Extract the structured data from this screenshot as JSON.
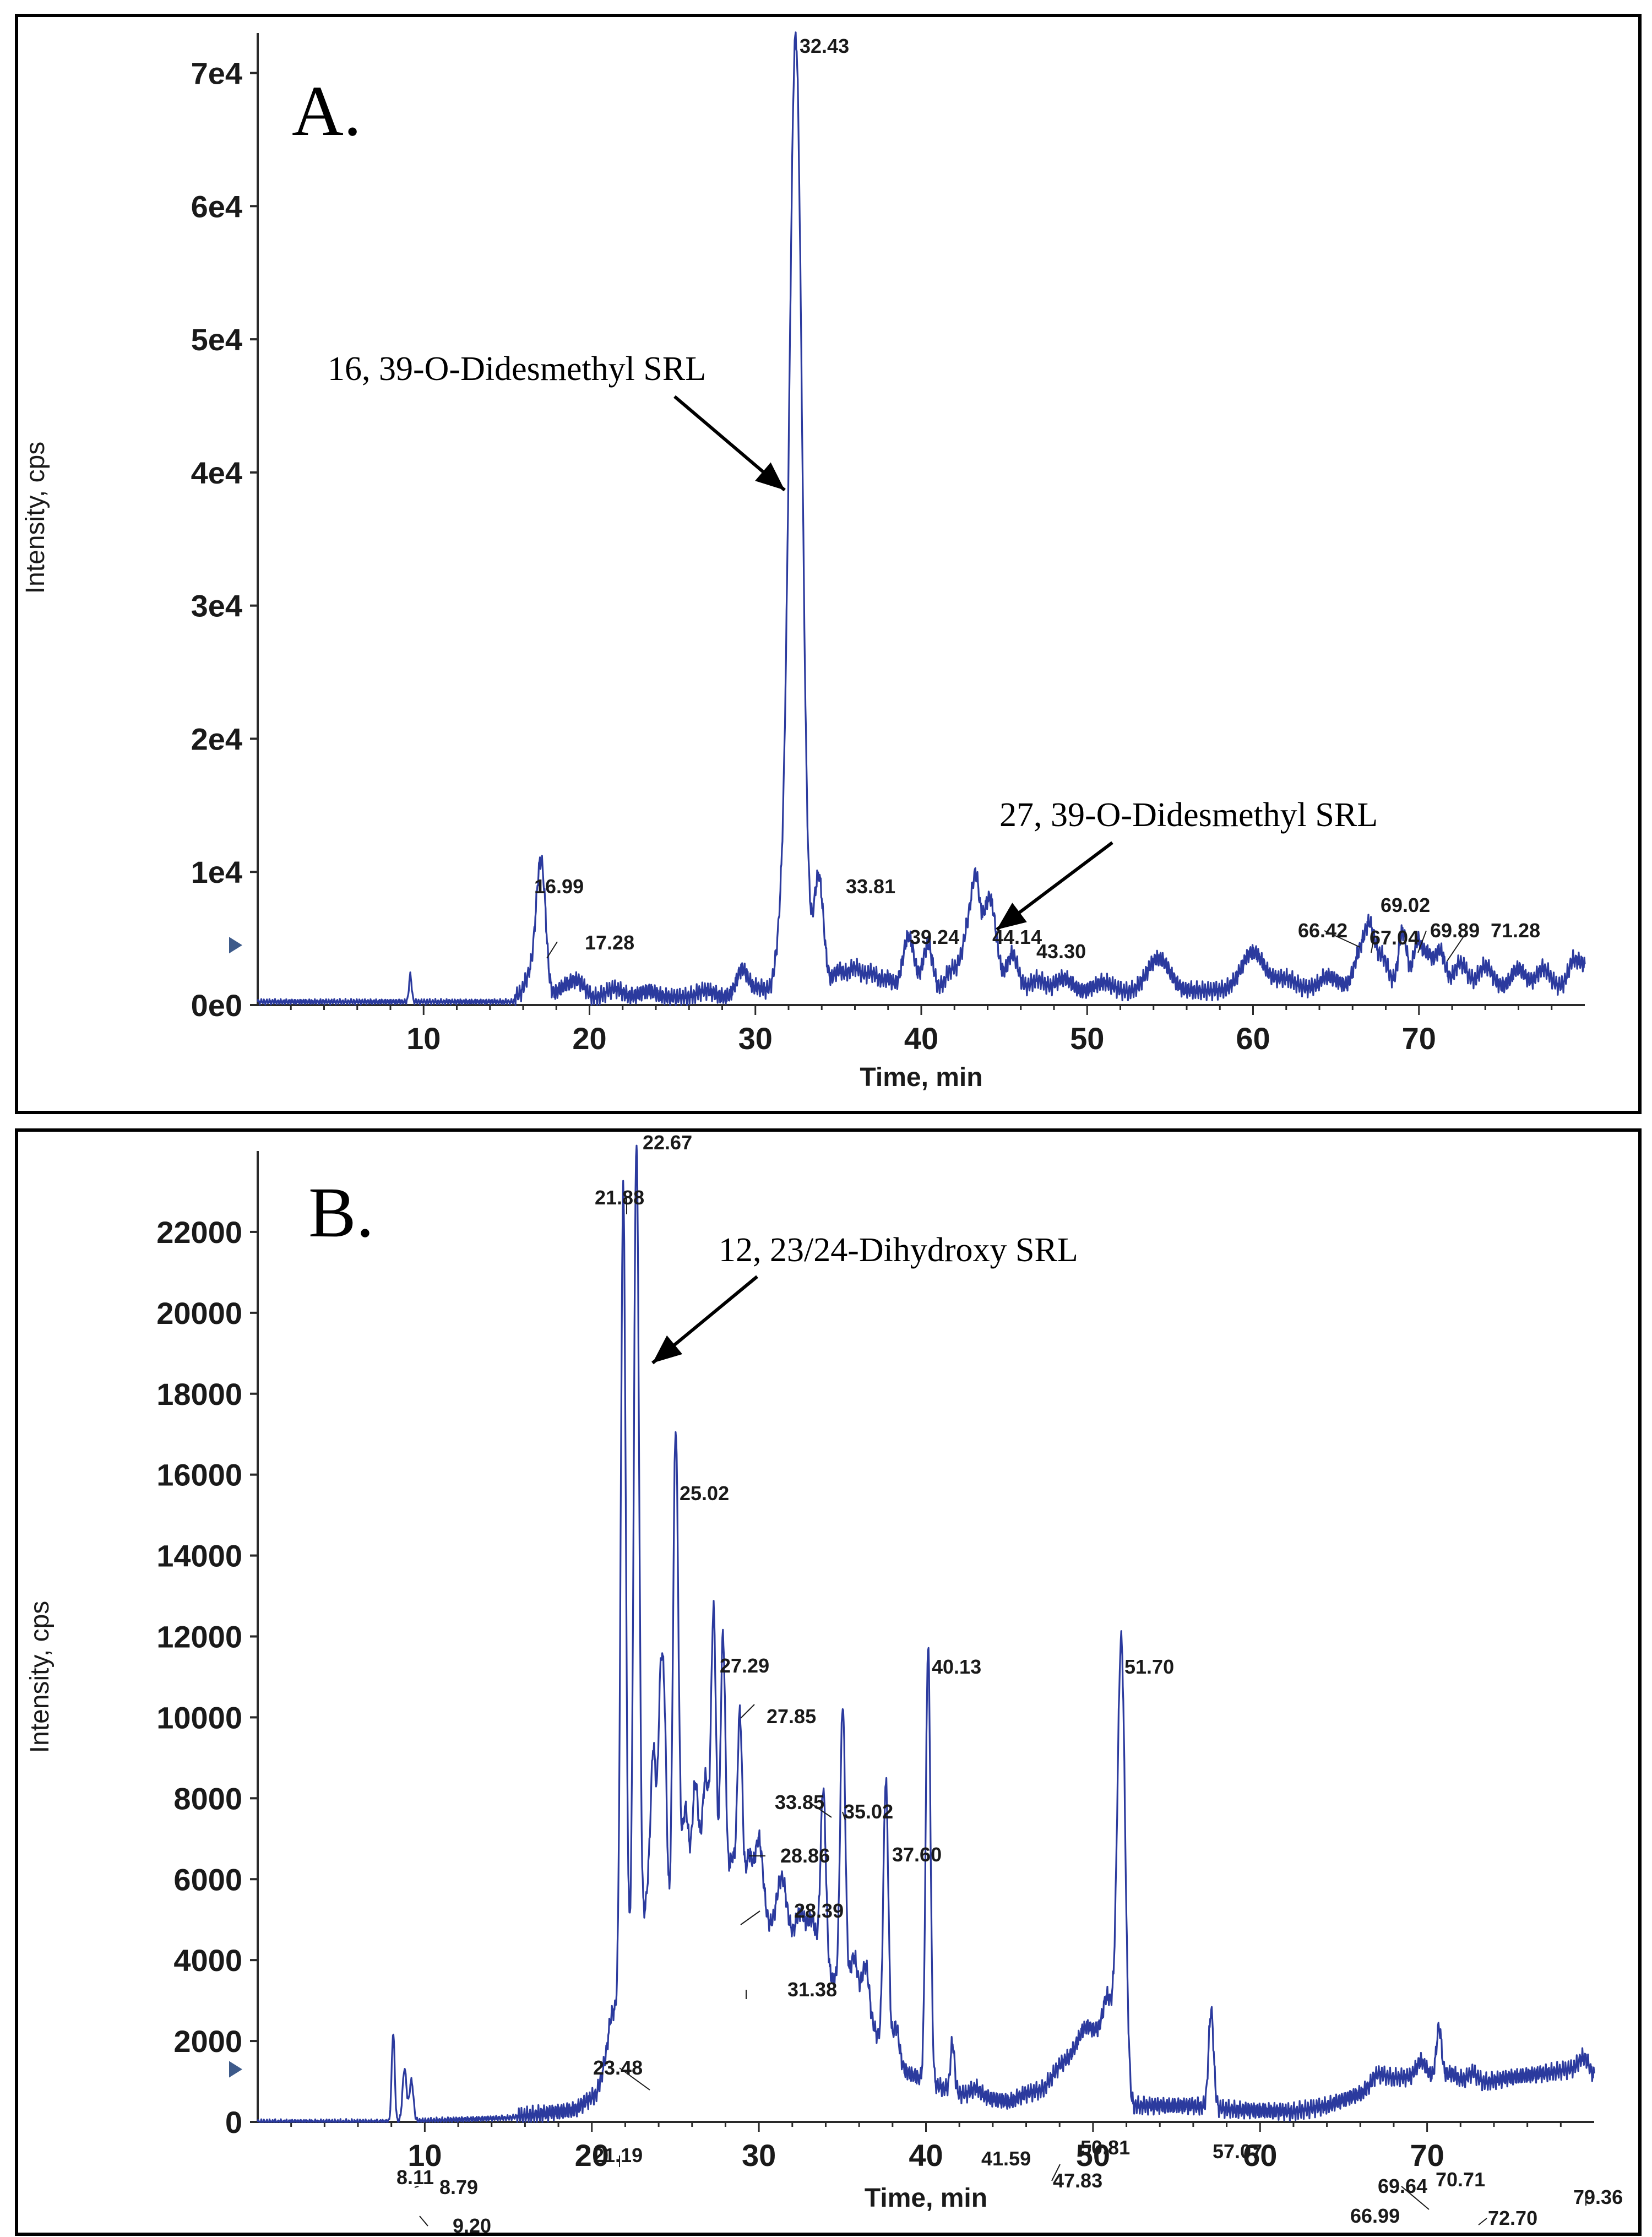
{
  "chart_data": [
    {
      "panel_label": "A.",
      "type": "line",
      "xlabel": "Time, min",
      "ylabel": "Intensity, cps",
      "xlim": [
        0,
        80
      ],
      "ylim": [
        0,
        73000
      ],
      "x_ticks": [
        10,
        20,
        30,
        40,
        50,
        60,
        70
      ],
      "y_ticks": [
        {
          "value": 0,
          "label": "0e0"
        },
        {
          "value": 10000,
          "label": "1e4"
        },
        {
          "value": 20000,
          "label": "2e4"
        },
        {
          "value": 30000,
          "label": "3e4"
        },
        {
          "value": 40000,
          "label": "4e4"
        },
        {
          "value": 50000,
          "label": "5e4"
        },
        {
          "value": 60000,
          "label": "6e4"
        },
        {
          "value": 70000,
          "label": "7e4"
        }
      ],
      "baseline": 250,
      "noise": [
        500,
        600,
        800,
        1000,
        1200,
        1500,
        1800,
        2000
      ],
      "peaks": [
        [
          9.2,
          2000,
          0.08
        ],
        [
          16.4,
          1600,
          0.3
        ],
        [
          16.99,
          8500,
          0.25
        ],
        [
          17.28,
          3500,
          0.2
        ],
        [
          18.5,
          700,
          0.4
        ],
        [
          19.3,
          1100,
          0.4
        ],
        [
          21.5,
          700,
          0.5
        ],
        [
          23.5,
          500,
          0.5
        ],
        [
          27,
          500,
          0.5
        ],
        [
          29.2,
          2000,
          0.35
        ],
        [
          30.2,
          700,
          0.5
        ],
        [
          31.6,
          4500,
          0.35
        ],
        [
          32.43,
          71800,
          0.38
        ],
        [
          33.81,
          9000,
          0.3
        ],
        [
          35.0,
          1800,
          0.4
        ],
        [
          36.0,
          2000,
          0.4
        ],
        [
          37.0,
          1600,
          0.4
        ],
        [
          38.0,
          1200,
          0.4
        ],
        [
          39.24,
          4500,
          0.35
        ],
        [
          40.4,
          3700,
          0.3
        ],
        [
          41.8,
          1700,
          0.4
        ],
        [
          43.0,
          6000,
          0.45
        ],
        [
          43.3,
          3500,
          0.2
        ],
        [
          44.14,
          7000,
          0.4
        ],
        [
          45.5,
          3000,
          0.35
        ],
        [
          47.0,
          1100,
          0.5
        ],
        [
          48.6,
          1100,
          0.5
        ],
        [
          51.0,
          800,
          0.6
        ],
        [
          54.3,
          2600,
          0.7
        ],
        [
          60.0,
          2900,
          0.7
        ],
        [
          62.0,
          900,
          0.6
        ],
        [
          64.5,
          900,
          0.6
        ],
        [
          66.42,
          2500,
          0.35
        ],
        [
          67.04,
          4200,
          0.3
        ],
        [
          67.8,
          2300,
          0.35
        ],
        [
          69.02,
          4300,
          0.25
        ],
        [
          69.89,
          3300,
          0.25
        ],
        [
          70.5,
          2500,
          0.3
        ],
        [
          71.28,
          2800,
          0.3
        ],
        [
          72.5,
          1800,
          0.4
        ],
        [
          74.0,
          1600,
          0.4
        ],
        [
          76.0,
          1400,
          0.4
        ],
        [
          77.5,
          1400,
          0.4
        ],
        [
          79.3,
          2000,
          0.3
        ],
        [
          79.9,
          1500,
          0.25
        ]
      ],
      "peak_labels": [
        {
          "text": "32.43",
          "x": 32.43,
          "y": 71800
        },
        {
          "text": "33.81",
          "x": 33.81,
          "y": 9000
        },
        {
          "text": "16.99",
          "x": 16.99,
          "y": 8500
        },
        {
          "text": "17.28",
          "x": 17.28,
          "y": 3500
        },
        {
          "text": "39.24",
          "x": 39.24,
          "y": 4500
        },
        {
          "text": "44.14",
          "x": 44.14,
          "y": 7000
        },
        {
          "text": "43.30",
          "x": 43.3,
          "y": 3500
        },
        {
          "text": "66.42",
          "x": 66.42,
          "y": 2500
        },
        {
          "text": "67.04",
          "x": 67.04,
          "y": 4200
        },
        {
          "text": "69.02",
          "x": 69.02,
          "y": 4300
        },
        {
          "text": "69.89",
          "x": 69.89,
          "y": 3300
        },
        {
          "text": "71.28",
          "x": 71.28,
          "y": 2800
        }
      ],
      "annotations": [
        {
          "text": "16, 39-O-Didesmethyl SRL",
          "points_to_x": 32.2,
          "points_to_y": 40000
        },
        {
          "text": "27, 39-O-Didesmethyl SRL",
          "points_to_x": 44.3,
          "points_to_y": 6000
        }
      ]
    },
    {
      "panel_label": "B.",
      "type": "line",
      "xlabel": "Time, min",
      "ylabel": "Intensity, cps",
      "xlim": [
        0,
        80
      ],
      "ylim": [
        0,
        24000
      ],
      "x_ticks": [
        10,
        20,
        30,
        40,
        50,
        60,
        70
      ],
      "y_ticks": [
        {
          "value": 0,
          "label": "0"
        },
        {
          "value": 2000,
          "label": "2000"
        },
        {
          "value": 4000,
          "label": "4000"
        },
        {
          "value": 6000,
          "label": "6000"
        },
        {
          "value": 8000,
          "label": "8000"
        },
        {
          "value": 10000,
          "label": "10000"
        },
        {
          "value": 12000,
          "label": "12000"
        },
        {
          "value": 14000,
          "label": "14000"
        },
        {
          "value": 16000,
          "label": "16000"
        },
        {
          "value": 18000,
          "label": "18000"
        },
        {
          "value": 20000,
          "label": "20000"
        },
        {
          "value": 22000,
          "label": "22000"
        }
      ],
      "baseline": 0,
      "noise": [
        100,
        100,
        300,
        600,
        700,
        700,
        650,
        600,
        500,
        400,
        300,
        300,
        300,
        300,
        350,
        400,
        450
      ],
      "segments": [
        [
          0,
          0
        ],
        [
          8.0,
          0
        ],
        [
          15.0,
          100
        ],
        [
          19.0,
          300
        ],
        [
          20.3,
          700
        ],
        [
          21.0,
          1800
        ],
        [
          22.2,
          3500
        ],
        [
          24.5,
          4500
        ],
        [
          27.0,
          5000
        ],
        [
          30.0,
          5000
        ],
        [
          33.0,
          4000
        ],
        [
          36.0,
          3000
        ],
        [
          38.0,
          1400
        ],
        [
          40.0,
          1000
        ],
        [
          42.0,
          700
        ],
        [
          45.0,
          500
        ],
        [
          46.0,
          700
        ],
        [
          47.0,
          800
        ],
        [
          48.0,
          1400
        ],
        [
          50.0,
          2100
        ],
        [
          51.0,
          2600
        ],
        [
          51.4,
          2700
        ],
        [
          52.3,
          400
        ],
        [
          56.0,
          400
        ],
        [
          58.5,
          300
        ],
        [
          62.0,
          250
        ],
        [
          64.0,
          400
        ],
        [
          66.0,
          700
        ],
        [
          67.5,
          1100
        ],
        [
          70.0,
          1100
        ],
        [
          71.5,
          1200
        ],
        [
          72.5,
          900
        ],
        [
          75.0,
          1100
        ],
        [
          77.0,
          1200
        ],
        [
          78.5,
          1300
        ],
        [
          79.5,
          1300
        ],
        [
          80.0,
          1100
        ]
      ],
      "peaks": [
        [
          8.11,
          2200,
          0.09
        ],
        [
          8.79,
          1300,
          0.12
        ],
        [
          9.2,
          1000,
          0.12
        ],
        [
          21.19,
          600,
          0.2
        ],
        [
          21.88,
          20000,
          0.15
        ],
        [
          22.67,
          20500,
          0.16
        ],
        [
          23.48,
          2000,
          0.3
        ],
        [
          23.7,
          3500,
          0.15
        ],
        [
          24.1,
          5500,
          0.14
        ],
        [
          24.35,
          5000,
          0.14
        ],
        [
          25.02,
          12500,
          0.16
        ],
        [
          25.6,
          3000,
          0.2
        ],
        [
          26.2,
          3500,
          0.2
        ],
        [
          26.8,
          3500,
          0.2
        ],
        [
          27.29,
          7500,
          0.15
        ],
        [
          27.85,
          7000,
          0.15
        ],
        [
          28.39,
          1500,
          0.2
        ],
        [
          28.86,
          5000,
          0.15
        ],
        [
          29.4,
          1500,
          0.2
        ],
        [
          30.0,
          2000,
          0.25
        ],
        [
          31.38,
          1500,
          0.3
        ],
        [
          32.5,
          1000,
          0.3
        ],
        [
          33.2,
          1000,
          0.25
        ],
        [
          33.85,
          4500,
          0.16
        ],
        [
          35.02,
          7000,
          0.15
        ],
        [
          35.7,
          1000,
          0.2
        ],
        [
          36.4,
          1200,
          0.2
        ],
        [
          37.6,
          6700,
          0.15
        ],
        [
          38.2,
          1000,
          0.2
        ],
        [
          40.13,
          10800,
          0.14
        ],
        [
          41.59,
          1200,
          0.12
        ],
        [
          43.0,
          200,
          0.3
        ],
        [
          49.5,
          400,
          0.4
        ],
        [
          50.81,
          600,
          0.2
        ],
        [
          51.7,
          10000,
          0.22
        ],
        [
          57.07,
          2400,
          0.15
        ],
        [
          66.99,
          200,
          0.3
        ],
        [
          69.64,
          400,
          0.3
        ],
        [
          70.71,
          1200,
          0.15
        ],
        [
          72.7,
          300,
          0.3
        ],
        [
          79.36,
          300,
          0.3
        ]
      ],
      "peak_labels": [
        {
          "text": "22.67",
          "x": 22.67,
          "y": 23800
        },
        {
          "text": "21.88",
          "x": 21.88,
          "y": 21800
        },
        {
          "text": "25.02",
          "x": 25.02,
          "y": 16800
        },
        {
          "text": "27.29",
          "x": 27.29,
          "y": 12600
        },
        {
          "text": "27.85",
          "x": 27.85,
          "y": 12100
        },
        {
          "text": "33.85",
          "x": 33.85,
          "y": 8500
        },
        {
          "text": "35.02",
          "x": 35.02,
          "y": 9800
        },
        {
          "text": "28.86",
          "x": 28.86,
          "y": 9800
        },
        {
          "text": "28.39",
          "x": 28.39,
          "y": 6900
        },
        {
          "text": "31.38",
          "x": 31.38,
          "y": 6200
        },
        {
          "text": "37.60",
          "x": 37.6,
          "y": 8400
        },
        {
          "text": "40.13",
          "x": 40.13,
          "y": 11800
        },
        {
          "text": "51.70",
          "x": 51.7,
          "y": 12600
        },
        {
          "text": "23.48",
          "x": 23.48,
          "y": 4200
        },
        {
          "text": "21.19",
          "x": 21.19,
          "y": 2400
        },
        {
          "text": "8.11",
          "x": 8.11,
          "y": 2200
        },
        {
          "text": "8.79",
          "x": 8.79,
          "y": 1300
        },
        {
          "text": "9.20",
          "x": 9.2,
          "y": 1000
        },
        {
          "text": "41.59",
          "x": 41.59,
          "y": 1900
        },
        {
          "text": "47.83",
          "x": 47.83,
          "y": 1500
        },
        {
          "text": "50.81",
          "x": 50.81,
          "y": 2700
        },
        {
          "text": "57.07",
          "x": 57.07,
          "y": 2700
        },
        {
          "text": "66.99",
          "x": 66.99,
          "y": 1000
        },
        {
          "text": "69.64",
          "x": 69.64,
          "y": 1200
        },
        {
          "text": "70.71",
          "x": 70.71,
          "y": 2100
        },
        {
          "text": "72.70",
          "x": 72.7,
          "y": 1100
        },
        {
          "text": "79.36",
          "x": 79.36,
          "y": 1400
        }
      ],
      "annotations": [
        {
          "text": "12, 23/24-Dihydroxy SRL",
          "points_to_x": 22.8,
          "points_to_y": 18500
        }
      ]
    }
  ],
  "colors": {
    "trace": "#2b3a9e",
    "axis": "#2a2a2a",
    "text": "#1a1a1a",
    "frame": "#000000",
    "marker": "#3d5a8a"
  }
}
